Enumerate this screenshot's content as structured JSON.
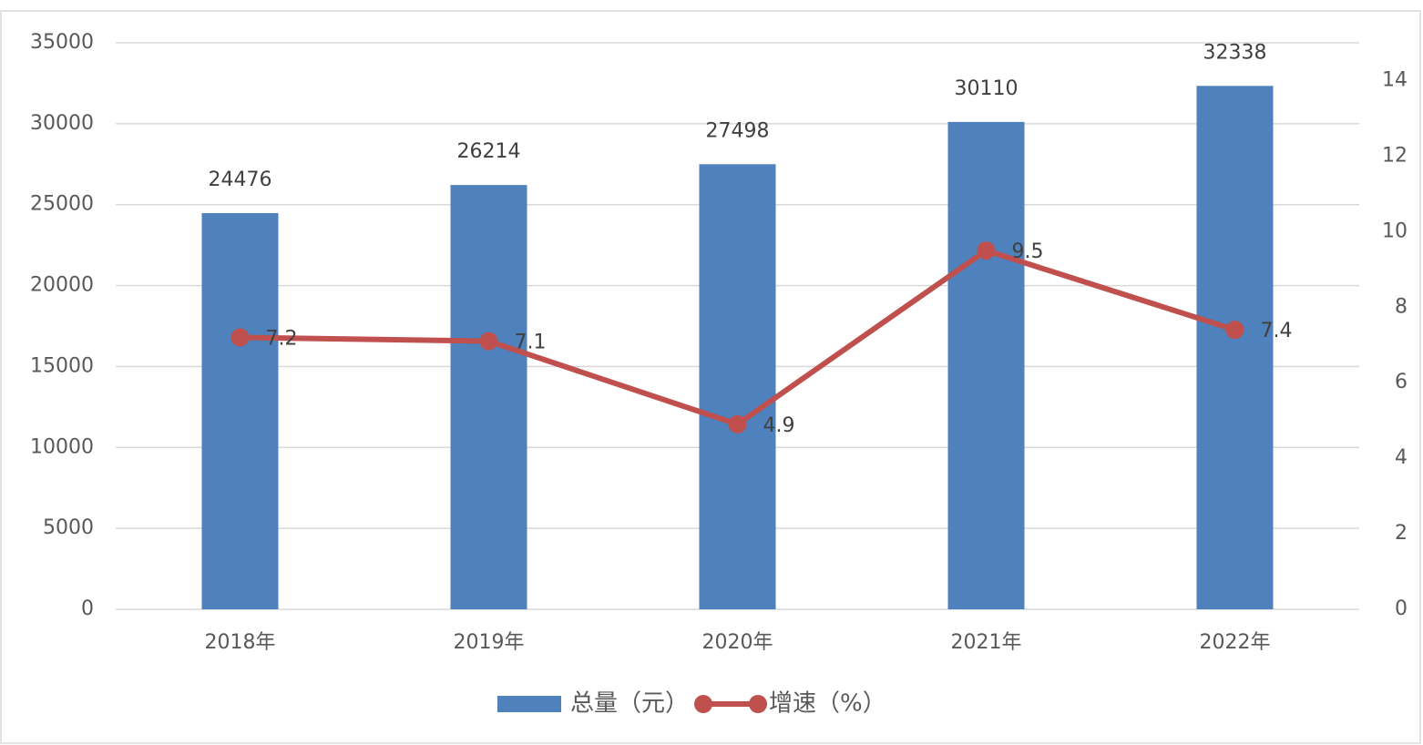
{
  "chart_data": {
    "type": "bar",
    "categories": [
      "2018年",
      "2019年",
      "2020年",
      "2021年",
      "2022年"
    ],
    "series": [
      {
        "name": "总量（元）",
        "type": "bar",
        "color": "#4f81bd",
        "values": [
          24476,
          26214,
          27498,
          30110,
          32338
        ]
      },
      {
        "name": "增速（%）",
        "type": "line",
        "axis": "y2",
        "color": "#c0504d",
        "values": [
          7.2,
          7.1,
          4.9,
          9.5,
          7.4
        ]
      }
    ],
    "ylim": [
      0,
      35000
    ],
    "yticks": [
      0,
      5000,
      10000,
      15000,
      20000,
      25000,
      30000,
      35000
    ],
    "y2lim": [
      0,
      15
    ],
    "y2ticks": [
      0,
      2,
      4,
      6,
      8,
      10,
      12,
      14
    ],
    "grid": true,
    "legend": "bottom"
  }
}
